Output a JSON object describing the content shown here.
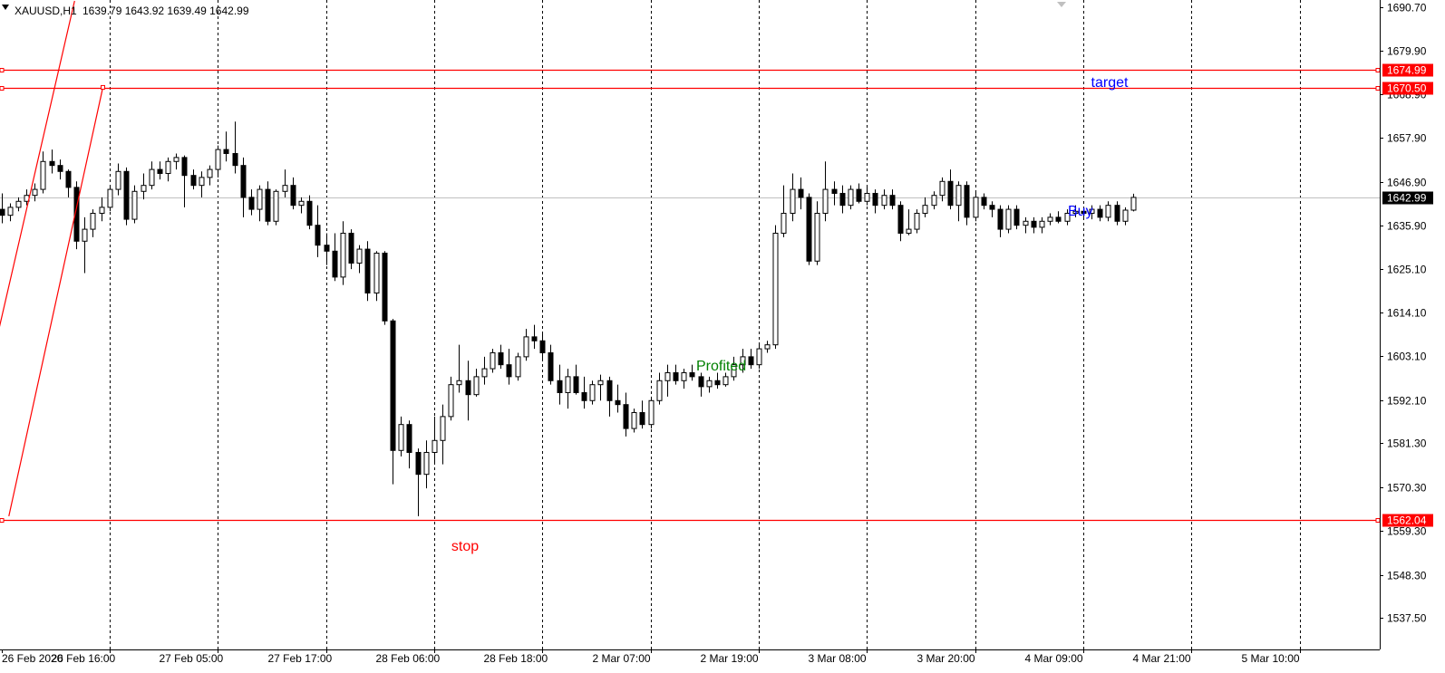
{
  "header": {
    "symbol": "XAUUSD,H1",
    "ohlc": "1639.79 1643.92 1639.49 1642.99"
  },
  "annotations": {
    "target": "target",
    "buy": "Buy",
    "profited": "Profited",
    "stop": "stop"
  },
  "colors": {
    "background": "#ffffff",
    "level_line": "#ff0000",
    "channel_line": "#ff0000",
    "bid_line": "#c0c0c0",
    "text_blue": "#0000ff",
    "text_green": "#008000",
    "text_red": "#ff0000",
    "candle_up": "#ffffff",
    "candle_down": "#000000",
    "price_tag_bid": "#000000"
  },
  "chart_data": {
    "type": "candlestick",
    "title": "XAUUSD,H1",
    "x_tick_labels": [
      "26 Feb 2020",
      "26 Feb 16:00",
      "27 Feb 05:00",
      "27 Feb 17:00",
      "28 Feb 06:00",
      "28 Feb 18:00",
      "2 Mar 07:00",
      "2 Mar 19:00",
      "3 Mar 08:00",
      "3 Mar 20:00",
      "4 Mar 09:00",
      "4 Mar 21:00",
      "5 Mar 10:00"
    ],
    "y_tick_labels": [
      "1690.70",
      "1679.90",
      "1668.90",
      "1657.90",
      "1646.90",
      "1635.90",
      "1625.10",
      "1614.10",
      "1603.10",
      "1592.10",
      "1581.30",
      "1570.30",
      "1559.30",
      "1548.30",
      "1537.50"
    ],
    "y_range": [
      1534.5,
      1692.3
    ],
    "grid": "vertical-dotted",
    "horizontal_levels": [
      {
        "price": 1674.99,
        "label": "1674.99"
      },
      {
        "price": 1670.5,
        "label": "1670.50"
      },
      {
        "price": 1562.04,
        "label": "1562.04"
      }
    ],
    "bid": {
      "price": 1642.99,
      "label": "1642.99"
    },
    "channel": {
      "upper": [
        [
          -2.6,
          1589.0
        ],
        [
          8.8,
          1692.3
        ]
      ],
      "lower": [
        [
          0.9,
          1563.0
        ],
        [
          12.2,
          1670.6
        ]
      ]
    },
    "candles": [
      [
        1640.0,
        1644.0,
        1636.5,
        1638.5
      ],
      [
        1638.5,
        1641.5,
        1637.0,
        1640.5
      ],
      [
        1640.5,
        1643.0,
        1639.5,
        1642.0
      ],
      [
        1642.0,
        1645.0,
        1641.0,
        1643.5
      ],
      [
        1643.5,
        1646.5,
        1642.0,
        1645.0
      ],
      [
        1645.0,
        1654.5,
        1644.0,
        1652.0
      ],
      [
        1652.0,
        1655.0,
        1649.0,
        1651.0
      ],
      [
        1651.0,
        1652.5,
        1647.5,
        1649.5
      ],
      [
        1649.5,
        1650.0,
        1643.0,
        1645.5
      ],
      [
        1645.5,
        1647.0,
        1630.0,
        1632.0
      ],
      [
        1632.0,
        1638.0,
        1624.0,
        1635.0
      ],
      [
        1635.0,
        1640.0,
        1633.0,
        1639.0
      ],
      [
        1639.0,
        1643.0,
        1637.0,
        1640.5
      ],
      [
        1640.5,
        1646.0,
        1639.5,
        1645.0
      ],
      [
        1645.0,
        1651.5,
        1643.5,
        1649.5
      ],
      [
        1649.5,
        1650.5,
        1636.0,
        1637.5
      ],
      [
        1637.5,
        1646.0,
        1636.5,
        1644.5
      ],
      [
        1644.5,
        1649.0,
        1642.5,
        1646.0
      ],
      [
        1646.0,
        1652.0,
        1645.0,
        1650.0
      ],
      [
        1650.0,
        1652.0,
        1647.5,
        1649.0
      ],
      [
        1649.0,
        1653.0,
        1647.0,
        1652.0
      ],
      [
        1652.0,
        1654.0,
        1650.0,
        1653.0
      ],
      [
        1653.0,
        1653.5,
        1640.5,
        1648.5
      ],
      [
        1648.5,
        1650.0,
        1645.0,
        1646.0
      ],
      [
        1646.0,
        1649.5,
        1643.0,
        1648.0
      ],
      [
        1648.0,
        1651.0,
        1646.0,
        1650.0
      ],
      [
        1650.0,
        1656.0,
        1648.0,
        1655.0
      ],
      [
        1655.0,
        1659.5,
        1652.0,
        1654.0
      ],
      [
        1654.0,
        1662.0,
        1649.0,
        1651.0
      ],
      [
        1651.0,
        1653.0,
        1638.0,
        1643.0
      ],
      [
        1643.0,
        1645.0,
        1638.5,
        1640.0
      ],
      [
        1640.0,
        1646.0,
        1637.0,
        1645.0
      ],
      [
        1645.0,
        1647.0,
        1636.0,
        1637.0
      ],
      [
        1637.0,
        1645.0,
        1636.0,
        1644.5
      ],
      [
        1644.5,
        1650.0,
        1643.0,
        1646.0
      ],
      [
        1646.0,
        1648.0,
        1640.0,
        1641.0
      ],
      [
        1641.0,
        1643.0,
        1639.0,
        1642.0
      ],
      [
        1642.0,
        1643.5,
        1635.0,
        1636.0
      ],
      [
        1636.0,
        1641.0,
        1628.0,
        1631.0
      ],
      [
        1631.0,
        1634.0,
        1626.0,
        1629.5
      ],
      [
        1629.5,
        1634.0,
        1622.0,
        1623.0
      ],
      [
        1623.0,
        1637.0,
        1621.0,
        1634.0
      ],
      [
        1634.0,
        1635.0,
        1625.0,
        1626.5
      ],
      [
        1626.5,
        1631.0,
        1624.0,
        1630.0
      ],
      [
        1630.0,
        1632.0,
        1617.0,
        1619.0
      ],
      [
        1619.0,
        1629.5,
        1617.0,
        1629.0
      ],
      [
        1629.0,
        1629.5,
        1611.0,
        1612.0
      ],
      [
        1612.0,
        1612.5,
        1571.0,
        1579.5
      ],
      [
        1579.5,
        1588.0,
        1578.0,
        1586.0
      ],
      [
        1586.0,
        1587.0,
        1575.0,
        1579.0
      ],
      [
        1579.0,
        1580.0,
        1563.0,
        1573.5
      ],
      [
        1573.5,
        1582.0,
        1570.0,
        1579.0
      ],
      [
        1579.0,
        1588.0,
        1576.0,
        1582.0
      ],
      [
        1582.0,
        1591.0,
        1576.0,
        1588.0
      ],
      [
        1588.0,
        1598.0,
        1587.0,
        1596.0
      ],
      [
        1596.0,
        1606.0,
        1594.0,
        1597.0
      ],
      [
        1597.0,
        1602.0,
        1587.0,
        1593.5
      ],
      [
        1593.5,
        1600.0,
        1593.0,
        1598.0
      ],
      [
        1598.0,
        1603.0,
        1596.0,
        1600.0
      ],
      [
        1600.0,
        1605.0,
        1599.0,
        1604.0
      ],
      [
        1604.0,
        1606.0,
        1600.0,
        1601.0
      ],
      [
        1601.0,
        1605.0,
        1596.0,
        1598.0
      ],
      [
        1598.0,
        1604.0,
        1597.0,
        1603.0
      ],
      [
        1603.0,
        1610.0,
        1602.0,
        1608.0
      ],
      [
        1608.0,
        1611.0,
        1605.0,
        1607.0
      ],
      [
        1607.0,
        1609.0,
        1602.0,
        1604.0
      ],
      [
        1604.0,
        1606.0,
        1596.0,
        1597.0
      ],
      [
        1597.0,
        1601.0,
        1591.0,
        1594.0
      ],
      [
        1594.0,
        1600.0,
        1590.0,
        1598.0
      ],
      [
        1598.0,
        1601.0,
        1593.5,
        1594.0
      ],
      [
        1594.0,
        1598.0,
        1590.0,
        1592.0
      ],
      [
        1592.0,
        1597.0,
        1591.0,
        1596.0
      ],
      [
        1596.0,
        1598.5,
        1592.0,
        1597.0
      ],
      [
        1597.0,
        1598.0,
        1588.0,
        1592.0
      ],
      [
        1592.0,
        1596.0,
        1589.0,
        1591.0
      ],
      [
        1591.0,
        1594.0,
        1583.0,
        1585.0
      ],
      [
        1585.0,
        1590.0,
        1584.0,
        1589.0
      ],
      [
        1589.0,
        1592.0,
        1585.0,
        1586.0
      ],
      [
        1586.0,
        1593.0,
        1585.0,
        1592.0
      ],
      [
        1592.0,
        1599.0,
        1591.0,
        1597.0
      ],
      [
        1597.0,
        1601.0,
        1593.0,
        1599.0
      ],
      [
        1599.0,
        1601.0,
        1596.0,
        1597.0
      ],
      [
        1597.0,
        1600.0,
        1595.0,
        1599.0
      ],
      [
        1599.0,
        1601.0,
        1597.0,
        1598.0
      ],
      [
        1598.0,
        1599.0,
        1593.0,
        1595.5
      ],
      [
        1595.5,
        1598.0,
        1594.0,
        1597.0
      ],
      [
        1597.0,
        1599.0,
        1595.0,
        1596.0
      ],
      [
        1596.0,
        1599.0,
        1595.5,
        1598.0
      ],
      [
        1598.0,
        1603.0,
        1597.0,
        1601.0
      ],
      [
        1601.0,
        1605.0,
        1599.0,
        1603.0
      ],
      [
        1603.0,
        1605.0,
        1600.0,
        1601.0
      ],
      [
        1601.0,
        1606.0,
        1600.0,
        1605.0
      ],
      [
        1605.0,
        1607.0,
        1604.0,
        1606.0
      ],
      [
        1606.0,
        1636.0,
        1605.0,
        1634.0
      ],
      [
        1634.0,
        1646.0,
        1633.0,
        1639.0
      ],
      [
        1639.0,
        1649.0,
        1637.0,
        1645.0
      ],
      [
        1645.0,
        1648.0,
        1640.0,
        1643.0
      ],
      [
        1643.0,
        1644.0,
        1626.0,
        1627.0
      ],
      [
        1627.0,
        1642.0,
        1626.0,
        1639.0
      ],
      [
        1639.0,
        1652.0,
        1637.0,
        1645.0
      ],
      [
        1645.0,
        1647.0,
        1641.0,
        1644.0
      ],
      [
        1644.0,
        1646.0,
        1639.0,
        1641.0
      ],
      [
        1641.0,
        1646.0,
        1640.0,
        1645.0
      ],
      [
        1645.0,
        1646.5,
        1641.5,
        1642.0
      ],
      [
        1642.0,
        1646.0,
        1641.0,
        1644.0
      ],
      [
        1644.0,
        1645.0,
        1639.0,
        1641.0
      ],
      [
        1641.0,
        1645.0,
        1640.0,
        1643.5
      ],
      [
        1643.5,
        1645.0,
        1640.0,
        1641.0
      ],
      [
        1641.0,
        1642.0,
        1632.0,
        1634.0
      ],
      [
        1634.0,
        1640.0,
        1633.5,
        1635.0
      ],
      [
        1635.0,
        1640.0,
        1634.0,
        1639.0
      ],
      [
        1639.0,
        1643.0,
        1638.0,
        1641.0
      ],
      [
        1641.0,
        1644.5,
        1640.0,
        1643.5
      ],
      [
        1643.5,
        1648.0,
        1642.0,
        1647.0
      ],
      [
        1647.0,
        1650.0,
        1640.0,
        1641.0
      ],
      [
        1641.0,
        1647.0,
        1637.0,
        1646.0
      ],
      [
        1646.0,
        1647.0,
        1636.0,
        1638.0
      ],
      [
        1638.0,
        1644.5,
        1637.0,
        1643.0
      ],
      [
        1643.0,
        1644.0,
        1640.0,
        1641.0
      ],
      [
        1641.0,
        1642.0,
        1638.0,
        1640.0
      ],
      [
        1640.0,
        1641.0,
        1633.0,
        1635.0
      ],
      [
        1635.0,
        1641.0,
        1634.0,
        1640.0
      ],
      [
        1640.0,
        1641.0,
        1635.0,
        1636.0
      ],
      [
        1636.0,
        1638.0,
        1634.0,
        1637.0
      ],
      [
        1637.0,
        1638.0,
        1634.0,
        1635.5
      ],
      [
        1635.5,
        1638.0,
        1634.0,
        1637.0
      ],
      [
        1637.0,
        1639.0,
        1636.0,
        1638.0
      ],
      [
        1638.0,
        1639.5,
        1636.5,
        1637.0
      ],
      [
        1637.0,
        1640.0,
        1636.0,
        1639.0
      ],
      [
        1639.0,
        1641.0,
        1638.0,
        1639.5
      ],
      [
        1639.5,
        1640.5,
        1638.0,
        1639.0
      ],
      [
        1639.0,
        1641.0,
        1637.5,
        1640.0
      ],
      [
        1640.0,
        1641.0,
        1637.0,
        1638.0
      ],
      [
        1638.0,
        1642.0,
        1637.0,
        1641.0
      ],
      [
        1641.0,
        1642.0,
        1636.0,
        1637.0
      ],
      [
        1637.0,
        1640.5,
        1636.0,
        1639.79
      ],
      [
        1639.79,
        1643.92,
        1639.49,
        1642.99
      ]
    ]
  }
}
